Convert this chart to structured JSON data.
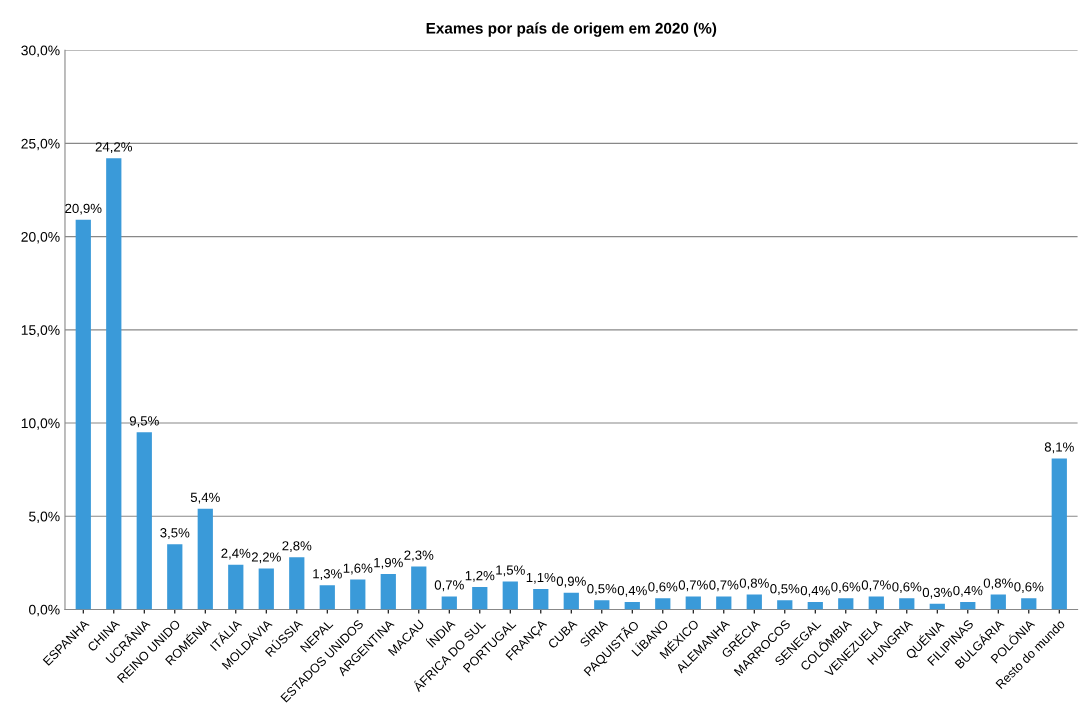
{
  "chart_data": {
    "type": "bar",
    "title": "Exames por país de origem em 2020 (%)",
    "categories": [
      "ESPANHA",
      "CHINA",
      "UCRÂNIA",
      "REINO UNIDO",
      "ROMÉNIA",
      "ITÁLIA",
      "MOLDÁVIA",
      "RÚSSIA",
      "NEPAL",
      "ESTADOS UNIDOS",
      "ARGENTINA",
      "MACAU",
      "ÍNDIA",
      "ÁFRICA DO SUL",
      "PORTUGAL",
      "FRANÇA",
      "CUBA",
      "SÍRIA",
      "PAQUISTÃO",
      "LÍBANO",
      "MÉXICO",
      "ALEMANHA",
      "GRÉCIA",
      "MARROCOS",
      "SENEGAL",
      "COLÔMBIA",
      "VENEZUELA",
      "HUNGRIA",
      "QUÉNIA",
      "FILIPINAS",
      "BULGÁRIA",
      "POLÓNIA",
      "Resto do mundo"
    ],
    "values": [
      20.9,
      24.2,
      9.5,
      3.5,
      5.4,
      2.4,
      2.2,
      2.8,
      1.3,
      1.6,
      1.9,
      2.3,
      0.7,
      1.2,
      1.5,
      1.1,
      0.9,
      0.5,
      0.4,
      0.6,
      0.7,
      0.7,
      0.8,
      0.5,
      0.4,
      0.6,
      0.7,
      0.6,
      0.3,
      0.4,
      0.8,
      0.6,
      8.1
    ],
    "value_labels": [
      "20,9%",
      "24,2%",
      "9,5%",
      "3,5%",
      "5,4%",
      "2,4%",
      "2,2%",
      "2,8%",
      "1,3%",
      "1,6%",
      "1,9%",
      "2,3%",
      "0,7%",
      "1,2%",
      "1,5%",
      "1,1%",
      "0,9%",
      "0,5%",
      "0,4%",
      "0,6%",
      "0,7%",
      "0,7%",
      "0,8%",
      "0,5%",
      "0,4%",
      "0,6%",
      "0,7%",
      "0,6%",
      "0,3%",
      "0,4%",
      "0,8%",
      "0,6%",
      "8,1%"
    ],
    "color": "#3a9ad9",
    "ylim": [
      0,
      30
    ],
    "yticks": [
      {
        "value": 0,
        "label": "0,0%"
      },
      {
        "value": 5,
        "label": "5,0%"
      },
      {
        "value": 10,
        "label": "10,0%"
      },
      {
        "value": 15,
        "label": "15,0%"
      },
      {
        "value": 20,
        "label": "20,0%"
      },
      {
        "value": 25,
        "label": "25,0%"
      },
      {
        "value": 30,
        "label": "30,0%"
      }
    ],
    "grid": "y"
  }
}
